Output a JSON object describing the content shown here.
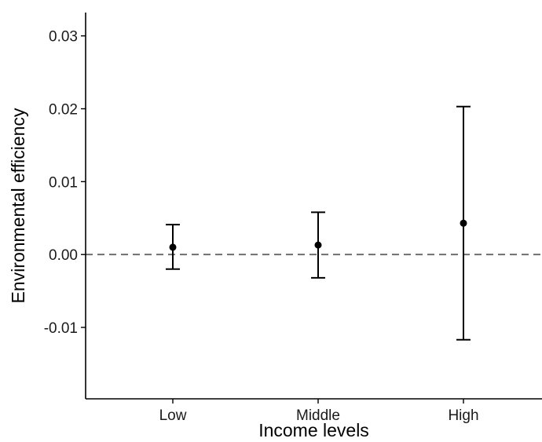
{
  "chart_data": {
    "type": "scatter",
    "subtype": "point-with-error-bars",
    "title": "",
    "xlabel": "Income levels",
    "ylabel": "Environmental efficiency",
    "categories": [
      "Low",
      "Middle",
      "High"
    ],
    "values": [
      0.001,
      0.0013,
      0.0043
    ],
    "lower": [
      -0.002,
      -0.0032,
      -0.0117
    ],
    "upper": [
      0.0041,
      0.0058,
      0.0203
    ],
    "ylim": [
      -0.0198,
      0.0332
    ],
    "yticks": [
      -0.01,
      0.0,
      0.01,
      0.02,
      0.03
    ],
    "ytick_labels": [
      "-0.01",
      "0.00",
      "0.01",
      "0.02",
      "0.03"
    ],
    "reference_line": {
      "y": 0,
      "style": "dashed",
      "color": "#666666"
    },
    "grid": false,
    "legend": "none"
  }
}
